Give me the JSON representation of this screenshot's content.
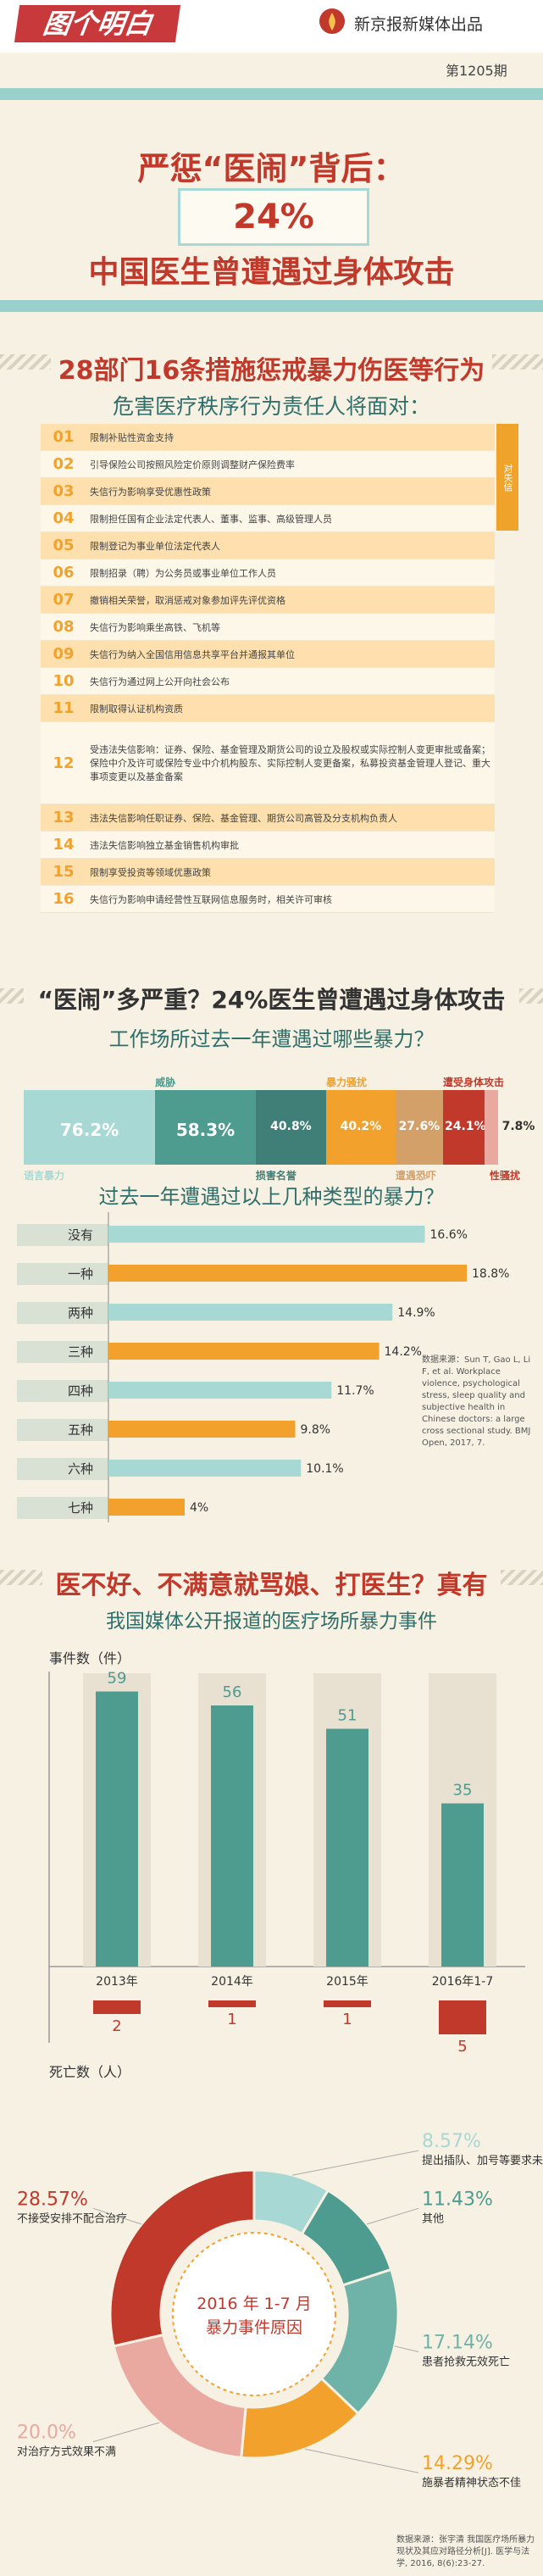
{
  "header": {
    "logo_text": "图个明白",
    "brand": "新京报新媒体出品",
    "issue": "第1205期"
  },
  "title": {
    "line1": "严惩“医闹”背后：",
    "percent": "24%",
    "line2": "中国医生曾遭遇过身体攻击"
  },
  "measures": {
    "heading": "28部门16条措施惩戒暴力伤医等行为",
    "subheading": "危害医疗秩序行为责任人将面对：",
    "side_tag": "对失信",
    "items": [
      {
        "num": "01",
        "text": "限制补贴性资金支持"
      },
      {
        "num": "02",
        "text": "引导保险公司按照风险定价原则调整财产保险费率"
      },
      {
        "num": "03",
        "text": "失信行为影响享受优惠性政策"
      },
      {
        "num": "04",
        "text": "限制担任国有企业法定代表人、董事、监事、高级管理人员"
      },
      {
        "num": "05",
        "text": "限制登记为事业单位法定代表人"
      },
      {
        "num": "06",
        "text": "限制招录（聘）为公务员或事业单位工作人员"
      },
      {
        "num": "07",
        "text": "撤销相关荣誉，取消惩戒对象参加评先评优资格"
      },
      {
        "num": "08",
        "text": "失信行为影响乘坐高铁、飞机等"
      },
      {
        "num": "09",
        "text": "失信行为纳入全国信用信息共享平台并通报其单位"
      },
      {
        "num": "10",
        "text": "失信行为通过网上公开向社会公布"
      },
      {
        "num": "11",
        "text": "限制取得认证机构资质"
      },
      {
        "num": "12",
        "text": "受违法失信影响：证券、保险、基金管理及期货公司的设立及股权或实际控制人变更审批或备案；保险中介及许可或保险专业中介机构股东、实际控制人变更备案，私募投资基金管理人登记、重大事项变更以及基金备案"
      },
      {
        "num": "13",
        "text": "违法失信影响任职证券、保险、基金管理、期货公司高管及分支机构负责人"
      },
      {
        "num": "14",
        "text": "违法失信影响独立基金销售机构审批"
      },
      {
        "num": "15",
        "text": "限制享受投资等领域优惠政策"
      },
      {
        "num": "16",
        "text": "失信行为影响申请经营性互联网信息服务时，相关许可审核"
      }
    ]
  },
  "violence": {
    "heading": "“医闹”多严重？24%医生曾遭遇过身体攻击",
    "subheading": "工作场所过去一年遭遇过哪些暴力？",
    "bar_title": "过去一年遭遇过以上几种类型的暴力？",
    "source": "数据来源：Sun T, Gao L, Li F, et al. Workplace violence, psychological stress, sleep quality and subjective health in Chinese doctors: a large cross sectional study. BMJ Open, 2017, 7."
  },
  "events": {
    "heading": "医不好、不满意就骂娘、打医生？真有",
    "subheading": "我国媒体公开报道的医疗场所暴力事件",
    "count_label": "事件数（件）",
    "death_label": "死亡数（人）",
    "donut_center1": "2016 年 1-7 月",
    "donut_center2": "暴力事件原因",
    "source": "数据来源：张宇清 我国医疗场所暴力现状及其应对路径分析[J]. 医学与法学, 2016, 8(6):23-27."
  },
  "colors": {
    "red": "#c0392b",
    "teal": "#4e9b90",
    "lightTeal": "#a8d8d4",
    "orange": "#f2a22c",
    "tan": "#d4a06a",
    "pink": "#e9a8a0"
  },
  "chart_data": [
    {
      "type": "bar",
      "title": "工作场所过去一年遭遇过哪些暴力？",
      "categories": [
        "语言暴力",
        "威胁",
        "损害名誉",
        "暴力骚扰",
        "遭遇恐吓",
        "遭受身体攻击",
        "性骚扰"
      ],
      "values": [
        76.2,
        58.3,
        40.8,
        40.2,
        27.6,
        24.1,
        7.8
      ],
      "value_labels": [
        "76.2%",
        "58.3%",
        "40.8%",
        "40.2%",
        "27.6%",
        "24.1%",
        "7.8%"
      ],
      "colors": [
        "#a8d8d4",
        "#4e9b90",
        "#3f7f78",
        "#f2a22c",
        "#d4a06a",
        "#c0392b",
        "#e9a8a0"
      ]
    },
    {
      "type": "bar",
      "title": "过去一年遭遇过以上几种类型的暴力？",
      "categories": [
        "没有",
        "一种",
        "两种",
        "三种",
        "四种",
        "五种",
        "六种",
        "七种"
      ],
      "values": [
        16.6,
        18.8,
        14.9,
        14.2,
        11.7,
        9.8,
        10.1,
        4
      ],
      "value_labels": [
        "16.6%",
        "18.8%",
        "14.9%",
        "14.2%",
        "11.7%",
        "9.8%",
        "10.1%",
        "4%"
      ]
    },
    {
      "type": "bar",
      "title": "我国媒体公开报道的医疗场所暴力事件",
      "categories": [
        "2013年",
        "2014年",
        "2015年",
        "2016年1-7"
      ],
      "series": [
        {
          "name": "事件数（件）",
          "values": [
            59,
            56,
            51,
            35
          ]
        },
        {
          "name": "死亡数（人）",
          "values": [
            2,
            1,
            1,
            5
          ]
        }
      ]
    },
    {
      "type": "pie",
      "title": "2016 年 1-7 月 暴力事件原因",
      "labels": [
        "提出插队、加号等要求未满足",
        "其他",
        "患者抢救无效死亡",
        "施暴者精神状态不佳",
        "对治疗方式效果不满",
        "不接受安排不配合治疗"
      ],
      "values": [
        8.57,
        11.43,
        17.14,
        14.29,
        20.0,
        28.57
      ],
      "value_labels": [
        "8.57%",
        "11.43%",
        "17.14%",
        "14.29%",
        "20.0%",
        "28.57%"
      ],
      "colors": [
        "#a8d8d4",
        "#4e9b90",
        "#6fb3a8",
        "#f2a22c",
        "#e9a8a0",
        "#c0392b"
      ]
    }
  ]
}
